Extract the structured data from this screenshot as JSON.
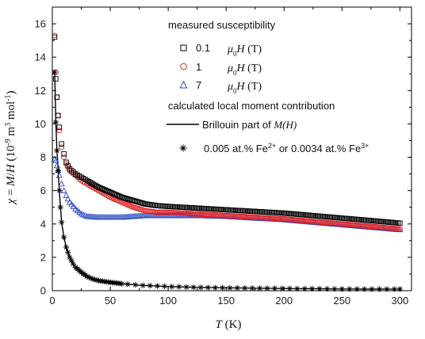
{
  "chart_data": {
    "type": "scatter",
    "xlabel": {
      "italic": "T",
      "rest": " (K)"
    },
    "ylabel": {
      "prefix": "χ = M/H (10",
      "exp1": "-9",
      "mid": "m",
      "exp2": "3",
      "mid2": "mol",
      "exp3": "-1",
      "suffix": ")"
    },
    "xlim": [
      0,
      310
    ],
    "ylim": [
      0,
      17
    ],
    "xticks": [
      0,
      50,
      100,
      150,
      200,
      250,
      300
    ],
    "yticks": [
      0,
      2,
      4,
      6,
      8,
      10,
      12,
      14,
      16
    ],
    "grid": false,
    "legend_position": "top-right",
    "legend": {
      "header1": "measured susceptibility",
      "header2": "calculated local moment contribution",
      "items": [
        {
          "value": "0.1",
          "mu": "μ",
          "sub": "0",
          "H": "H",
          "unit": " (T)",
          "marker": "square",
          "color": "#000000"
        },
        {
          "value": "1",
          "mu": "μ",
          "sub": "0",
          "H": "H",
          "unit": " (T)",
          "marker": "circle",
          "color": "#e31a1c"
        },
        {
          "value": "7",
          "mu": "μ",
          "sub": "0",
          "H": "H",
          "unit": " (T)",
          "marker": "triangle",
          "color": "#2b4bbf"
        }
      ],
      "line_item": {
        "text": "Brillouin part of ",
        "italic": "M(H)"
      },
      "star_item": {
        "text_a": "0.005 at.% Fe",
        "sup_a": "2+",
        "text_b": " or 0.0034 at.% Fe",
        "sup_b": "3+"
      }
    },
    "series": [
      {
        "name": "0.1 μ0H (T)",
        "marker": "square",
        "color": "#000000",
        "x": [
          2,
          3,
          4,
          5,
          6,
          8,
          10,
          12,
          15,
          20,
          25,
          30,
          40,
          50,
          60,
          70,
          80,
          90,
          100,
          125,
          150,
          175,
          200,
          225,
          250,
          275,
          300
        ],
        "y": [
          15.2,
          12.7,
          11.6,
          10.5,
          9.8,
          8.8,
          8.2,
          7.7,
          7.3,
          7.0,
          6.8,
          6.6,
          6.2,
          5.9,
          5.6,
          5.4,
          5.2,
          5.1,
          5.05,
          4.95,
          4.85,
          4.75,
          4.65,
          4.5,
          4.35,
          4.2,
          4.05
        ]
      },
      {
        "name": "1 μ0H (T)",
        "marker": "circle",
        "color": "#e31a1c",
        "x": [
          2,
          3,
          4,
          5,
          6,
          8,
          10,
          12,
          15,
          20,
          25,
          30,
          40,
          50,
          60,
          70,
          80,
          90,
          100,
          125,
          150,
          175,
          200,
          225,
          250,
          275,
          300
        ],
        "y": [
          15.3,
          13.1,
          11.6,
          10.5,
          9.6,
          8.6,
          8.0,
          7.6,
          7.2,
          6.9,
          6.6,
          6.4,
          6.0,
          5.6,
          5.3,
          5.0,
          4.8,
          4.7,
          4.7,
          4.6,
          4.5,
          4.4,
          4.3,
          4.15,
          4.0,
          3.85,
          3.7
        ]
      },
      {
        "name": "7 μ0H (T)",
        "marker": "triangle",
        "color": "#2b4bbf",
        "x": [
          2,
          3,
          4,
          5,
          6,
          8,
          10,
          12,
          15,
          20,
          25,
          30,
          40,
          50,
          60,
          70,
          80,
          90,
          100,
          125,
          150,
          175,
          200,
          225,
          250,
          275,
          300
        ],
        "y": [
          7.9,
          7.8,
          7.5,
          7.2,
          6.9,
          6.4,
          6.0,
          5.7,
          5.3,
          4.9,
          4.6,
          4.45,
          4.4,
          4.4,
          4.4,
          4.45,
          4.5,
          4.5,
          4.5,
          4.5,
          4.45,
          4.35,
          4.25,
          4.1,
          3.95,
          3.8,
          3.65
        ]
      },
      {
        "name": "0.005 at.% Fe2+ or 0.0034 at.% Fe3+",
        "marker": "star",
        "color": "#000000",
        "x": [
          2,
          3,
          4,
          5,
          6,
          7,
          8,
          10,
          12,
          15,
          18,
          20,
          25,
          30,
          35,
          40,
          50,
          60,
          75,
          100,
          125,
          150,
          200,
          250,
          300
        ],
        "y": [
          13.1,
          10.1,
          8.4,
          7.2,
          6.0,
          5.0,
          4.1,
          3.2,
          2.6,
          2.0,
          1.6,
          1.4,
          1.1,
          0.85,
          0.7,
          0.6,
          0.5,
          0.42,
          0.33,
          0.25,
          0.2,
          0.17,
          0.13,
          0.1,
          0.09
        ]
      }
    ]
  }
}
